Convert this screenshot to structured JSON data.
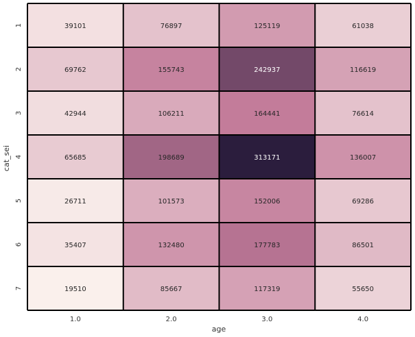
{
  "chart_data": {
    "type": "heatmap",
    "xlabel": "age",
    "ylabel": "cat_sei",
    "x_categories": [
      "1.0",
      "2.0",
      "3.0",
      "4.0"
    ],
    "y_categories": [
      "1",
      "2",
      "3",
      "4",
      "5",
      "6",
      "7"
    ],
    "values": [
      [
        39101,
        76897,
        125119,
        61038
      ],
      [
        69762,
        155743,
        242937,
        116619
      ],
      [
        42944,
        106211,
        164441,
        76614
      ],
      [
        65685,
        198689,
        313171,
        136007
      ],
      [
        26711,
        101573,
        152006,
        69286
      ],
      [
        35407,
        132480,
        177783,
        86501
      ],
      [
        19510,
        85667,
        117319,
        55650
      ]
    ],
    "colormap": {
      "low": "#faf0ec",
      "mid": "#c27a99",
      "high": "#2b1d3d"
    },
    "grid_line_color": "#000000",
    "colorbar": false
  }
}
